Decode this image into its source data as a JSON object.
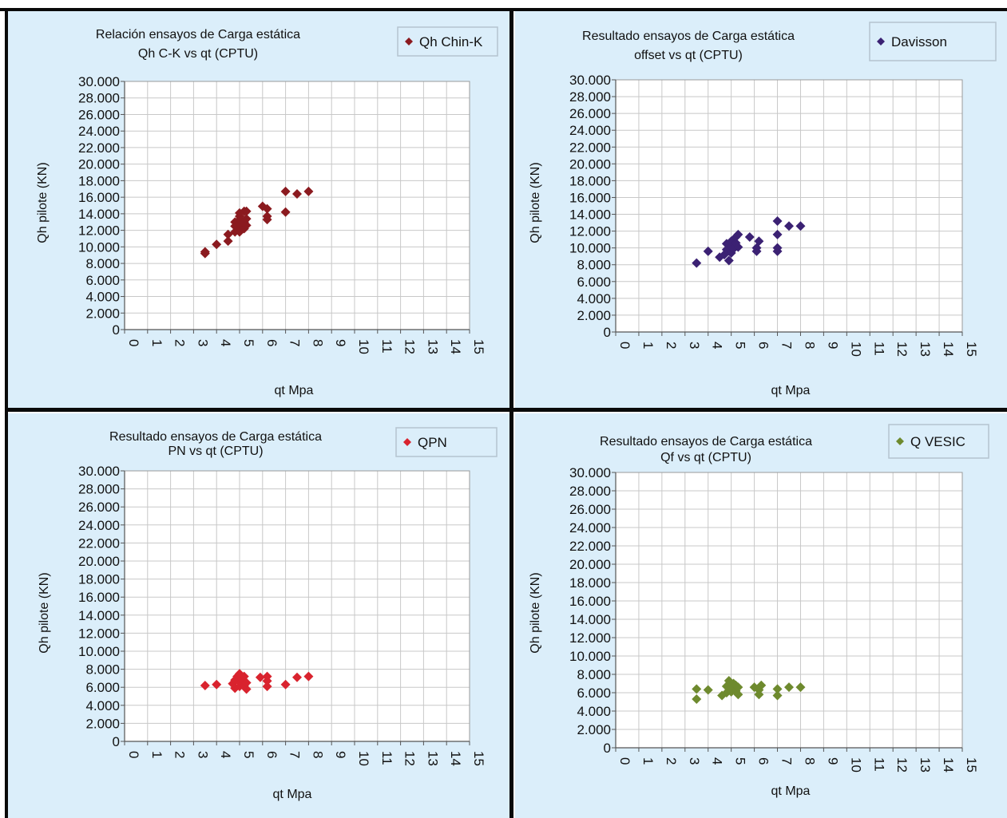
{
  "chart_data": [
    {
      "type": "scatter",
      "title_lines": [
        "Relación ensayos de Carga estática",
        "Qh C-K vs qt (CPTU)"
      ],
      "xlabel": "qt Mpa",
      "ylabel": "Qh pilote (KN)",
      "xlim": [
        0,
        15
      ],
      "ylim": [
        0,
        30000
      ],
      "x_ticks": [
        "0",
        "1",
        "2",
        "3",
        "4",
        "5",
        "6",
        "7",
        "8",
        "9",
        "10",
        "11",
        "12",
        "13",
        "14",
        "15"
      ],
      "y_ticks": [
        "0",
        "2.000",
        "4.000",
        "6.000",
        "8.000",
        "10.000",
        "12.000",
        "14.000",
        "16.000",
        "18.000",
        "20.000",
        "22.000",
        "24.000",
        "26.000",
        "28.000",
        "30.000"
      ],
      "grid": true,
      "legend_position": "top-right",
      "series": [
        {
          "name": "Qh Chin-K",
          "color": "#8b1a1f",
          "marker": "diamond",
          "points": [
            [
              3.5,
              9200
            ],
            [
              3.5,
              9400
            ],
            [
              4.0,
              10300
            ],
            [
              4.5,
              10700
            ],
            [
              4.5,
              11500
            ],
            [
              4.8,
              11800
            ],
            [
              4.8,
              12500
            ],
            [
              4.8,
              13000
            ],
            [
              5.0,
              11800
            ],
            [
              5.0,
              12300
            ],
            [
              5.0,
              12800
            ],
            [
              5.0,
              13300
            ],
            [
              5.0,
              13700
            ],
            [
              5.0,
              14100
            ],
            [
              5.2,
              12200
            ],
            [
              5.2,
              13000
            ],
            [
              5.2,
              14300
            ],
            [
              5.3,
              12600
            ],
            [
              5.3,
              13400
            ],
            [
              5.3,
              14300
            ],
            [
              6.0,
              14900
            ],
            [
              6.2,
              13300
            ],
            [
              6.2,
              13700
            ],
            [
              6.2,
              14600
            ],
            [
              7.0,
              14200
            ],
            [
              7.0,
              16700
            ],
            [
              7.5,
              16400
            ],
            [
              8.0,
              16700
            ]
          ]
        }
      ]
    },
    {
      "type": "scatter",
      "title_lines": [
        "Resultado ensayos de Carga estática",
        "offset vs qt (CPTU)"
      ],
      "xlabel": "qt Mpa",
      "ylabel": "Qh pilote (KN)",
      "xlim": [
        0,
        15
      ],
      "ylim": [
        0,
        30000
      ],
      "x_ticks": [
        "0",
        "1",
        "2",
        "3",
        "4",
        "5",
        "6",
        "7",
        "8",
        "9",
        "10",
        "11",
        "12",
        "13",
        "14",
        "15"
      ],
      "y_ticks": [
        "0",
        "2.000",
        "4.000",
        "6.000",
        "8.000",
        "10.000",
        "12.000",
        "14.000",
        "16.000",
        "18.000",
        "20.000",
        "22.000",
        "24.000",
        "26.000",
        "28.000",
        "30.000"
      ],
      "grid": true,
      "legend_position": "top-right",
      "series": [
        {
          "name": "Davisson",
          "color": "#3b2173",
          "marker": "diamond",
          "points": [
            [
              3.5,
              8200
            ],
            [
              4.0,
              9600
            ],
            [
              4.5,
              8900
            ],
            [
              4.7,
              9200
            ],
            [
              4.8,
              9800
            ],
            [
              4.8,
              10500
            ],
            [
              4.9,
              8500
            ],
            [
              5.0,
              9400
            ],
            [
              5.0,
              10100
            ],
            [
              5.0,
              10800
            ],
            [
              5.1,
              9900
            ],
            [
              5.2,
              10600
            ],
            [
              5.2,
              11300
            ],
            [
              5.3,
              10100
            ],
            [
              5.3,
              11600
            ],
            [
              5.8,
              11300
            ],
            [
              6.1,
              9600
            ],
            [
              6.1,
              10000
            ],
            [
              6.2,
              10800
            ],
            [
              7.0,
              9600
            ],
            [
              7.0,
              10000
            ],
            [
              7.0,
              11600
            ],
            [
              7.0,
              13200
            ],
            [
              7.5,
              12600
            ],
            [
              8.0,
              12600
            ]
          ]
        }
      ]
    },
    {
      "type": "scatter",
      "title_lines": [
        "Resultado ensayos de Carga estática",
        "PN vs qt (CPTU)"
      ],
      "xlabel": "qt Mpa",
      "ylabel": "Qh pilote (KN)",
      "xlim": [
        0,
        15
      ],
      "ylim": [
        0,
        30000
      ],
      "x_ticks": [
        "0",
        "1",
        "2",
        "3",
        "4",
        "5",
        "6",
        "7",
        "8",
        "9",
        "10",
        "11",
        "12",
        "13",
        "14",
        "15"
      ],
      "y_ticks": [
        "0",
        "2.000",
        "4.000",
        "6.000",
        "8.000",
        "10.000",
        "12.000",
        "14.000",
        "16.000",
        "18.000",
        "20.000",
        "22.000",
        "24.000",
        "26.000",
        "28.000",
        "30.000"
      ],
      "grid": true,
      "legend_position": "top-right",
      "series": [
        {
          "name": "QPN",
          "color": "#d9232e",
          "marker": "diamond",
          "points": [
            [
              3.5,
              6200
            ],
            [
              4.0,
              6300
            ],
            [
              4.7,
              6400
            ],
            [
              4.8,
              5900
            ],
            [
              4.8,
              6800
            ],
            [
              4.9,
              7200
            ],
            [
              5.0,
              6100
            ],
            [
              5.0,
              6600
            ],
            [
              5.0,
              7000
            ],
            [
              5.0,
              7500
            ],
            [
              5.1,
              6900
            ],
            [
              5.2,
              6200
            ],
            [
              5.2,
              6700
            ],
            [
              5.2,
              7200
            ],
            [
              5.3,
              5800
            ],
            [
              5.3,
              6500
            ],
            [
              5.9,
              7100
            ],
            [
              6.2,
              6100
            ],
            [
              6.2,
              6700
            ],
            [
              6.2,
              7200
            ],
            [
              7.0,
              6300
            ],
            [
              7.5,
              7100
            ],
            [
              8.0,
              7200
            ]
          ]
        }
      ]
    },
    {
      "type": "scatter",
      "title_lines": [
        "Resultado ensayos de Carga estática",
        "Qf vs qt (CPTU)"
      ],
      "xlabel": "qt Mpa",
      "ylabel": "Qh pilote (KN)",
      "xlim": [
        0,
        15
      ],
      "ylim": [
        0,
        30000
      ],
      "x_ticks": [
        "0",
        "1",
        "2",
        "3",
        "4",
        "5",
        "6",
        "7",
        "8",
        "9",
        "10",
        "11",
        "12",
        "13",
        "14",
        "15"
      ],
      "y_ticks": [
        "0",
        "2.000",
        "4.000",
        "6.000",
        "8.000",
        "10.000",
        "12.000",
        "14.000",
        "16.000",
        "18.000",
        "20.000",
        "22.000",
        "24.000",
        "26.000",
        "28.000",
        "30.000"
      ],
      "grid": true,
      "legend_position": "top-right",
      "series": [
        {
          "name": "Q VESIC",
          "color": "#6e8a2e",
          "marker": "diamond",
          "points": [
            [
              3.5,
              5300
            ],
            [
              3.5,
              6400
            ],
            [
              4.0,
              6300
            ],
            [
              4.6,
              5700
            ],
            [
              4.8,
              6000
            ],
            [
              4.8,
              6700
            ],
            [
              4.9,
              7300
            ],
            [
              5.0,
              6100
            ],
            [
              5.0,
              6500
            ],
            [
              5.1,
              7000
            ],
            [
              5.2,
              6200
            ],
            [
              5.2,
              6800
            ],
            [
              5.3,
              5800
            ],
            [
              5.3,
              6600
            ],
            [
              6.0,
              6600
            ],
            [
              6.2,
              5800
            ],
            [
              6.2,
              6300
            ],
            [
              6.3,
              6800
            ],
            [
              7.0,
              5700
            ],
            [
              7.0,
              6400
            ],
            [
              7.5,
              6600
            ],
            [
              8.0,
              6600
            ]
          ]
        }
      ]
    }
  ]
}
